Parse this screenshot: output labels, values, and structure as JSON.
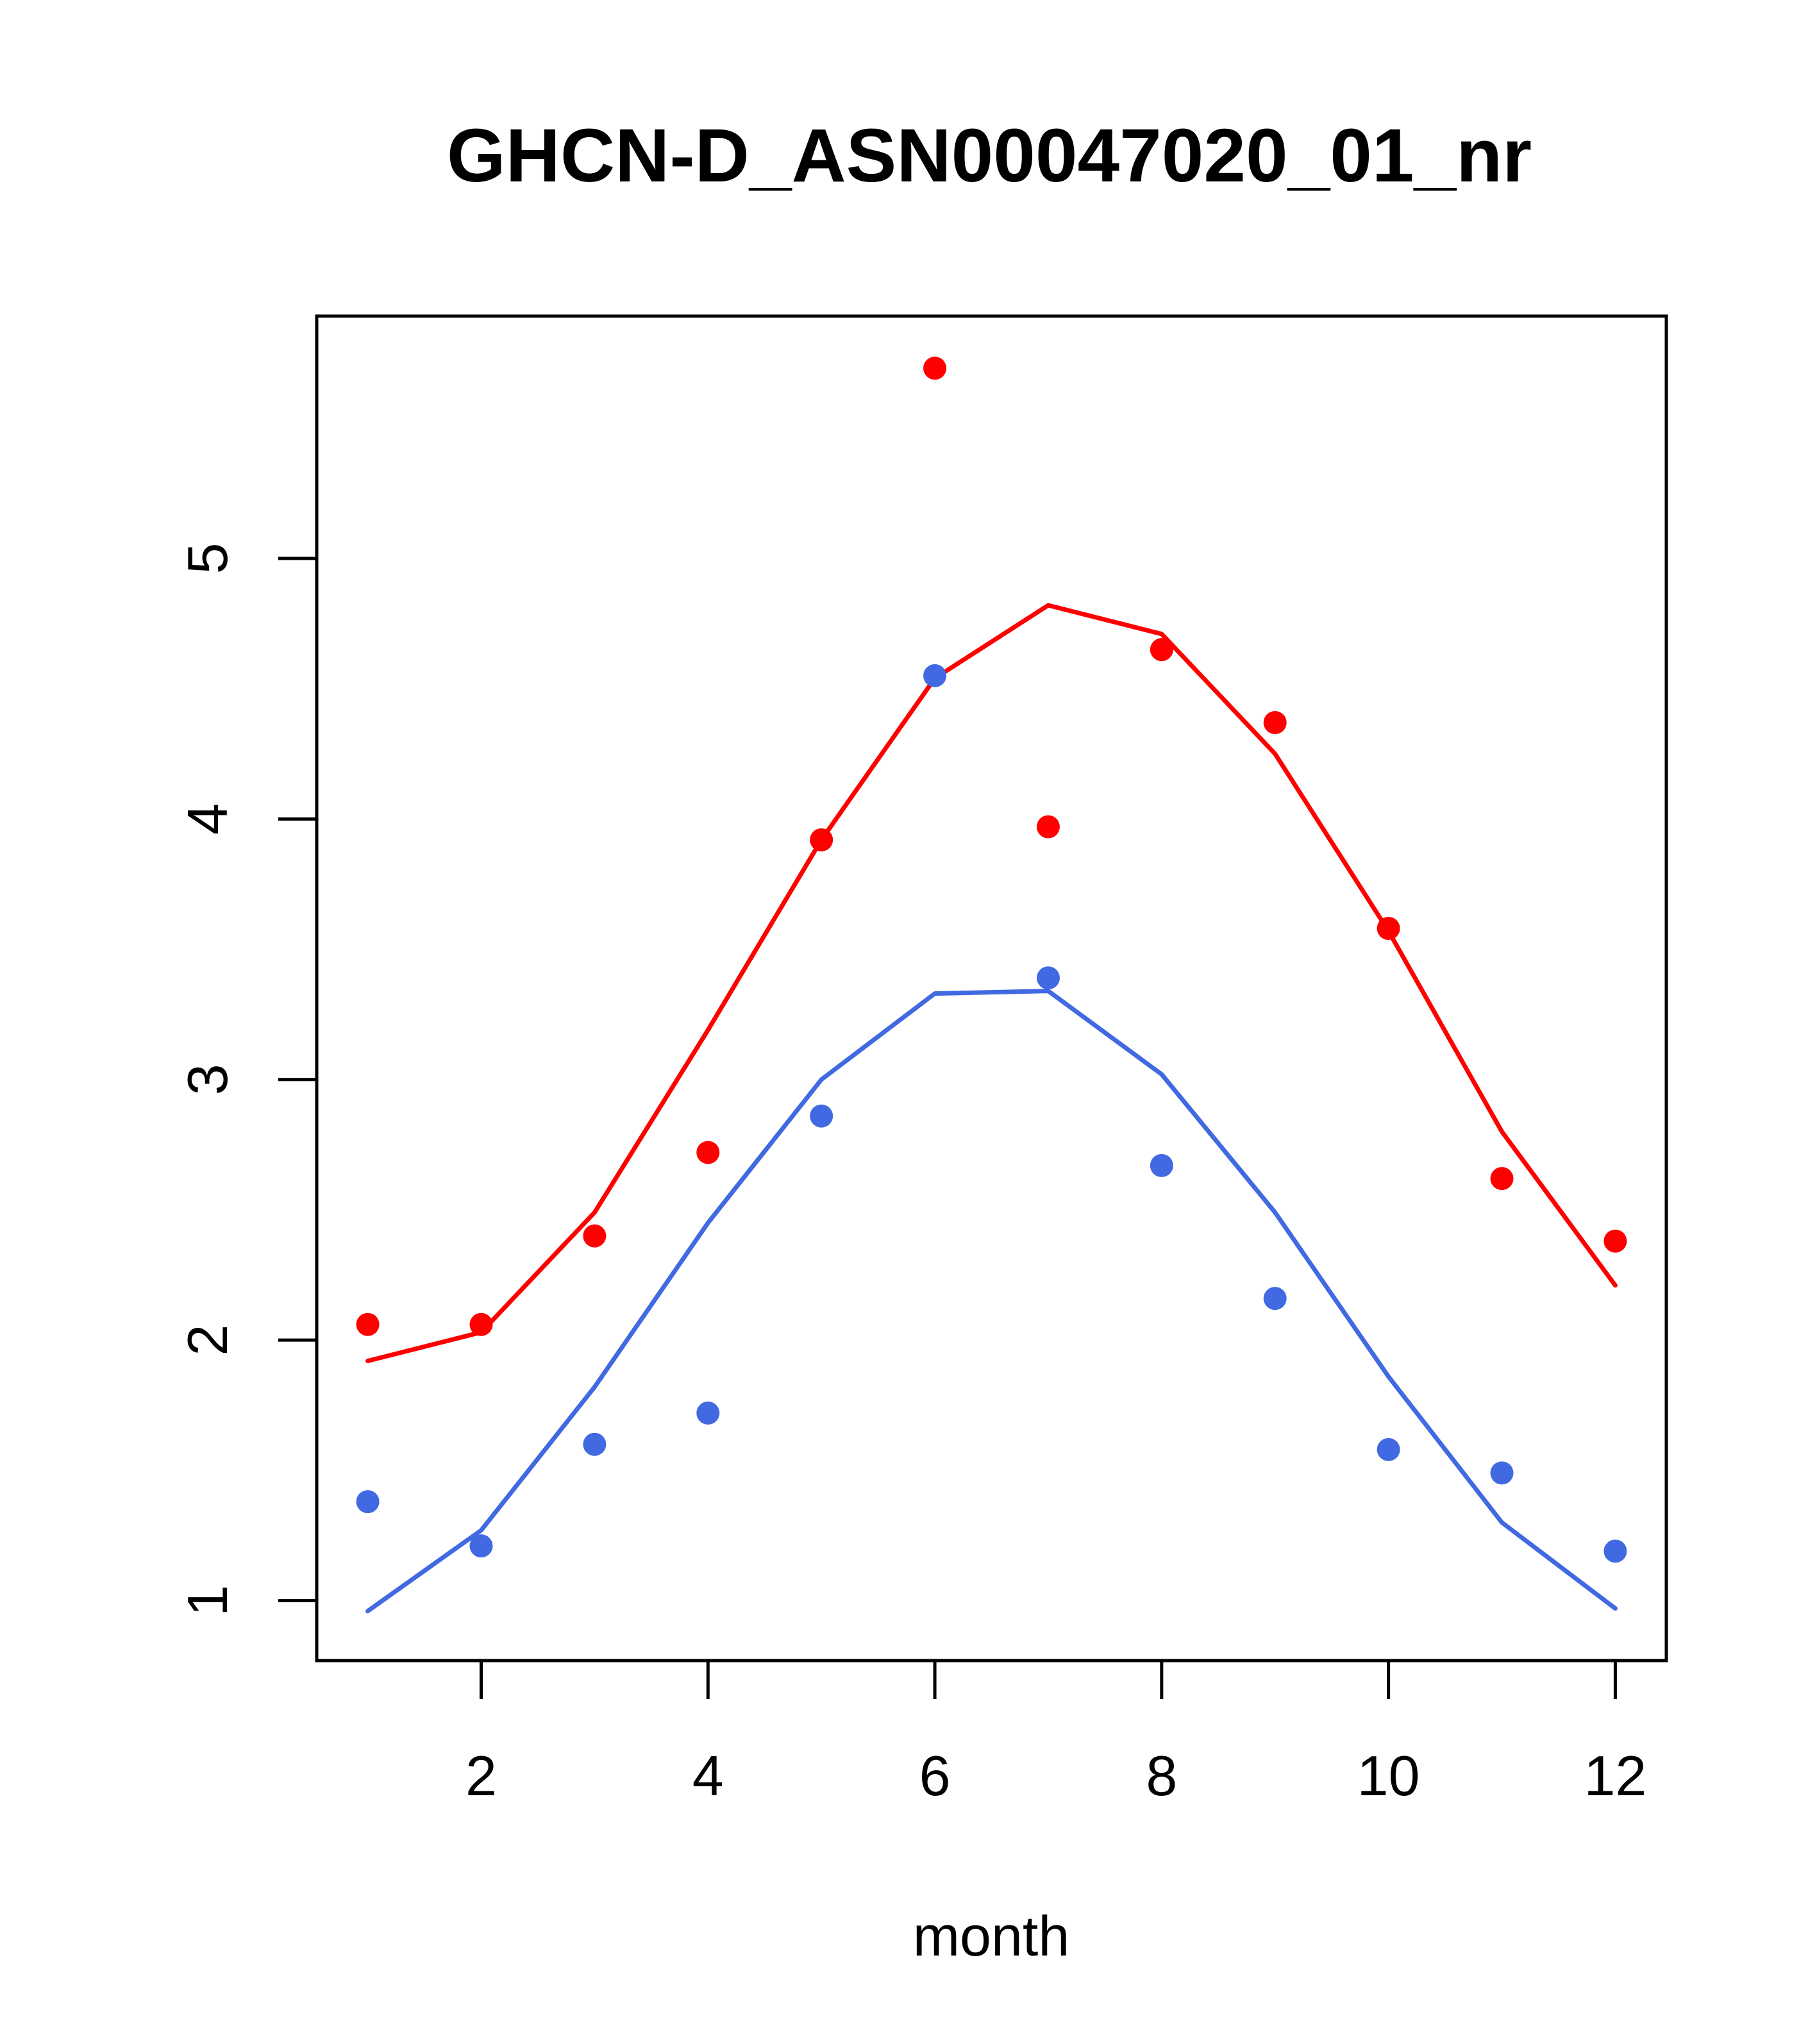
{
  "chart_data": {
    "type": "scatter",
    "title": "GHCN-D_ASN00047020_01_nr",
    "xlabel": "month",
    "ylabel": "",
    "xlim": [
      0.55,
      12.45
    ],
    "ylim": [
      0.77,
      5.93
    ],
    "xticks": [
      2,
      4,
      6,
      8,
      10,
      12
    ],
    "yticks": [
      1,
      2,
      3,
      4,
      5
    ],
    "grid": false,
    "legend": "none",
    "x": [
      1,
      2,
      3,
      4,
      5,
      6,
      7,
      8,
      9,
      10,
      11,
      12
    ],
    "series": [
      {
        "color": "#ff0000",
        "points": [
          2.06,
          2.06,
          2.4,
          2.72,
          3.92,
          5.73,
          3.97,
          4.65,
          4.37,
          3.58,
          2.62,
          2.38
        ],
        "line": [
          1.92,
          2.03,
          2.49,
          3.19,
          3.92,
          4.54,
          4.82,
          4.71,
          4.25,
          3.57,
          2.8,
          2.21
        ]
      },
      {
        "color": "#4169e1",
        "points": [
          1.38,
          1.21,
          1.6,
          1.72,
          2.86,
          4.55,
          3.39,
          2.67,
          2.16,
          1.58,
          1.49,
          1.19
        ],
        "line": [
          0.96,
          1.27,
          1.82,
          2.45,
          3.0,
          3.33,
          3.34,
          3.02,
          2.49,
          1.86,
          1.3,
          0.97
        ]
      }
    ]
  }
}
